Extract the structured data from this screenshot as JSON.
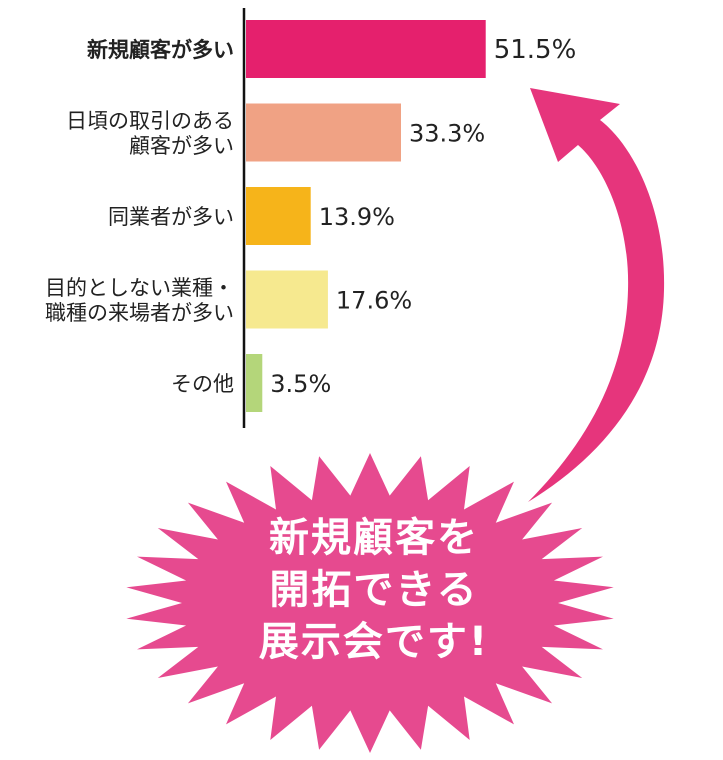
{
  "chart_data": {
    "type": "bar",
    "orientation": "horizontal",
    "categories": [
      [
        "新規顧客が多い"
      ],
      [
        "日頃の取引のある",
        "顧客が多い"
      ],
      [
        "同業者が多い"
      ],
      [
        "目的としない業種・",
        "職種の来場者が多い"
      ],
      [
        "その他"
      ]
    ],
    "values": [
      51.5,
      33.3,
      13.9,
      17.6,
      3.5
    ],
    "value_labels": [
      "51.5%",
      "33.3%",
      "13.9%",
      "17.6%",
      "3.5%"
    ],
    "colors": [
      "#e5206d",
      "#f0a284",
      "#f6b41a",
      "#f6e98f",
      "#b4d67a"
    ],
    "highlight_index": 0,
    "xlim": [
      0,
      55
    ],
    "title": "",
    "xlabel": "",
    "ylabel": ""
  },
  "callout": {
    "lines": [
      "新規顧客を",
      "開拓できる",
      "展示会です!"
    ],
    "color": "#e64a8f"
  },
  "arrow": {
    "color": "#e6357c"
  }
}
